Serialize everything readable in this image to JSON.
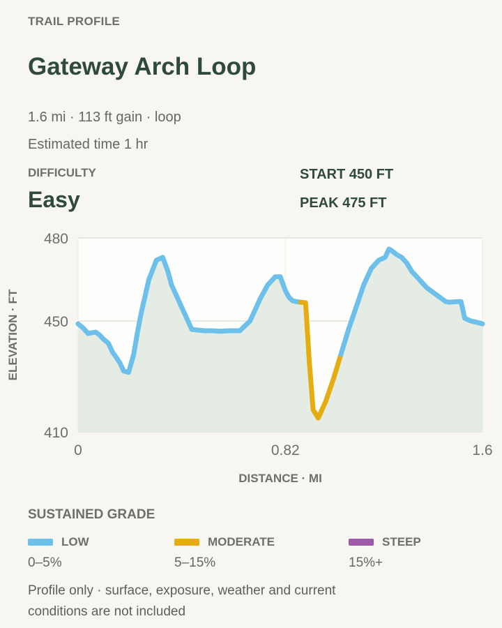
{
  "header": {
    "eyebrow": "TRAIL PROFILE",
    "title": "Gateway Arch Loop",
    "summary": "1.6 mi · 113 ft gain · loop",
    "estimate": "Estimated time 1 hr"
  },
  "difficulty": {
    "label": "DIFFICULTY",
    "value": "Easy"
  },
  "stats": {
    "start": "START 450 FT",
    "peak": "PEAK 475 FT"
  },
  "colors": {
    "low": "#6cc0ea",
    "moderate": "#e5ad12",
    "steep": "#9c5aa8",
    "fill": "#e5ece3"
  },
  "chart_data": {
    "type": "line",
    "xlabel": "DISTANCE · MI",
    "ylabel": "ELEVATION · FT",
    "xlim": [
      0,
      1.6
    ],
    "ylim": [
      410,
      480
    ],
    "xticks": [
      0,
      0.82,
      1.6
    ],
    "xtick_labels": [
      "0",
      "0.82",
      "1.6"
    ],
    "yticks": [
      410,
      450,
      480
    ],
    "ytick_labels": [
      "410",
      "450",
      "480"
    ],
    "grid": true,
    "series": [
      {
        "grade": "low",
        "x": [
          0,
          0.02,
          0.04,
          0.055,
          0.07,
          0.085,
          0.1,
          0.12,
          0.135,
          0.15,
          0.165,
          0.18,
          0.2,
          0.22,
          0.235,
          0.25,
          0.28,
          0.31,
          0.335,
          0.355,
          0.37,
          0.385,
          0.41,
          0.45,
          0.5,
          0.53,
          0.56,
          0.6,
          0.64,
          0.68,
          0.7,
          0.72,
          0.75,
          0.78,
          0.8,
          0.81,
          0.82,
          0.835,
          0.85,
          0.865,
          0.88
        ],
        "y": [
          449,
          447.5,
          445.5,
          445.8,
          446,
          445,
          443.5,
          442,
          439,
          437,
          435,
          432,
          431.5,
          438,
          446,
          453,
          465,
          472,
          473,
          468,
          463,
          460,
          455,
          447,
          446.5,
          446.5,
          446.3,
          446.5,
          446.5,
          450,
          454,
          458,
          463,
          466,
          466,
          463.5,
          461,
          458.5,
          457.3,
          457,
          456.8
        ]
      },
      {
        "grade": "moderate",
        "x": [
          0.88,
          0.9,
          0.915,
          0.93,
          0.95,
          0.98,
          1.01,
          1.04
        ],
        "y": [
          456.8,
          456.6,
          435,
          418,
          415,
          421,
          429,
          438
        ]
      },
      {
        "grade": "low",
        "x": [
          1.04,
          1.07,
          1.1,
          1.13,
          1.16,
          1.19,
          1.215,
          1.23,
          1.24,
          1.26,
          1.28,
          1.3,
          1.32,
          1.35,
          1.38,
          1.41,
          1.44,
          1.455,
          1.47,
          1.5,
          1.515,
          1.53,
          1.555,
          1.58,
          1.6
        ],
        "y": [
          438,
          447,
          455,
          463,
          469,
          472,
          473,
          476,
          475.5,
          474,
          473,
          471,
          468,
          465,
          462,
          460,
          458,
          457,
          456.8,
          457,
          457,
          451,
          450,
          449.5,
          449
        ]
      }
    ]
  },
  "legend": {
    "title": "SUSTAINED GRADE",
    "items": [
      {
        "label": "LOW",
        "range": "0–5%",
        "color": "#6cc0ea"
      },
      {
        "label": "MODERATE",
        "range": "5–15%",
        "color": "#e5ad12"
      },
      {
        "label": "STEEP",
        "range": "15%+",
        "color": "#9c5aa8"
      }
    ]
  },
  "footnote": "Profile only · surface, exposure, weather and current conditions are not included"
}
